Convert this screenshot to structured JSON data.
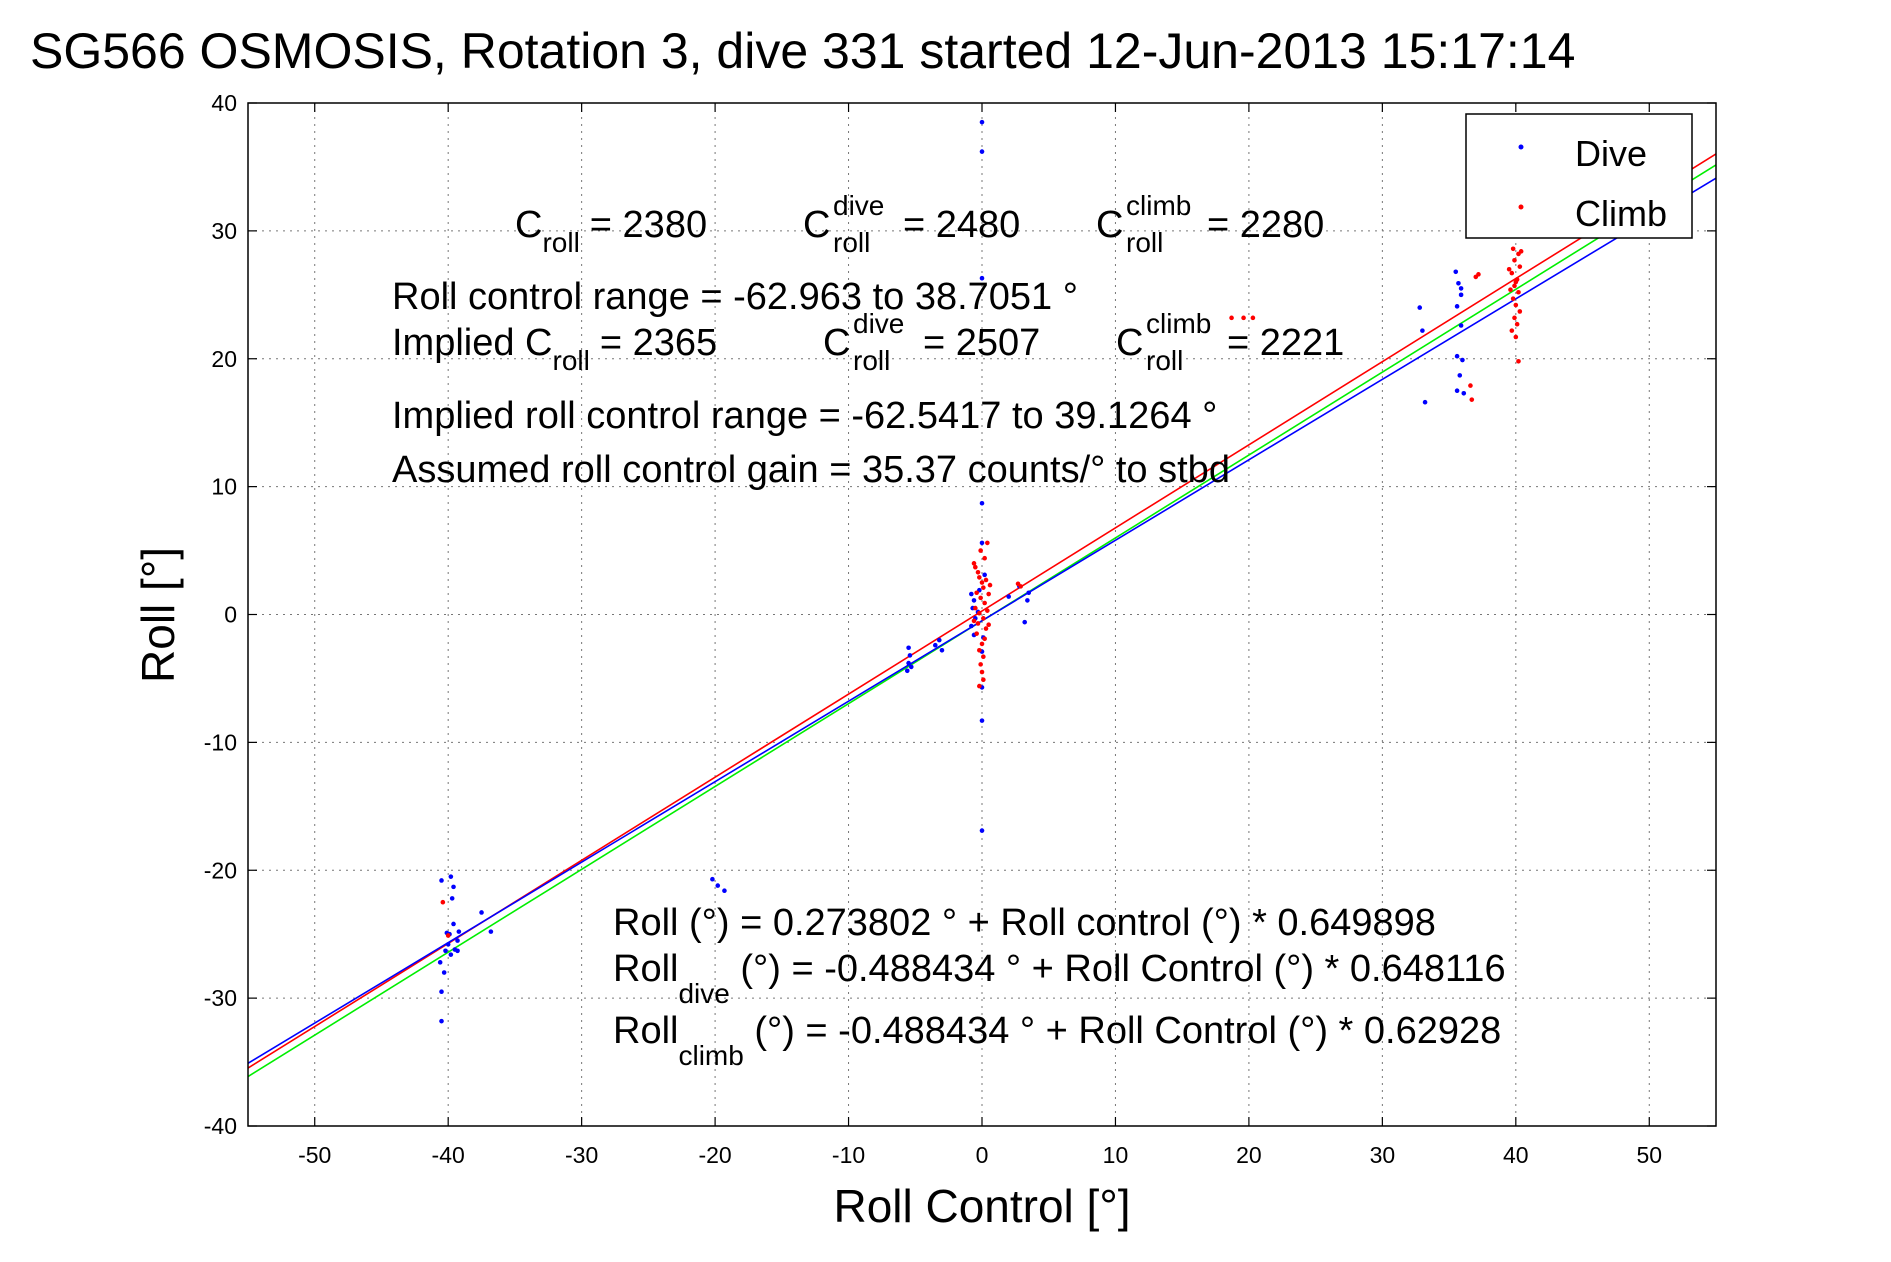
{
  "chart_data": {
    "type": "scatter",
    "title": "SG566 OSMOSIS, Rotation 3, dive 331 started 12-Jun-2013 15:17:14",
    "xlabel": "Roll Control [°]",
    "ylabel": "Roll [°]",
    "xlim": [
      -55,
      55
    ],
    "ylim": [
      -40,
      40
    ],
    "xticks": [
      -50,
      -40,
      -30,
      -20,
      -10,
      0,
      10,
      20,
      30,
      40,
      50
    ],
    "yticks": [
      -40,
      -30,
      -20,
      -10,
      0,
      10,
      20,
      30,
      40
    ],
    "grid": true,
    "legend_position": "top-right",
    "series": [
      {
        "name": "Dive",
        "color": "#0000ff",
        "marker": "dot",
        "points": [
          [
            -40.5,
            -20.8
          ],
          [
            -40.5,
            -31.8
          ],
          [
            -40.5,
            -29.5
          ],
          [
            -40.3,
            -28.0
          ],
          [
            -40.6,
            -27.2
          ],
          [
            -40.2,
            -26.3
          ],
          [
            -40.0,
            -25.8
          ],
          [
            -39.8,
            -26.6
          ],
          [
            -39.9,
            -25.0
          ],
          [
            -39.6,
            -24.2
          ],
          [
            -39.5,
            -26.2
          ],
          [
            -39.7,
            -22.2
          ],
          [
            -39.6,
            -21.3
          ],
          [
            -39.3,
            -25.5
          ],
          [
            -40.1,
            -24.9
          ],
          [
            -39.3,
            -26.3
          ],
          [
            -39.8,
            -20.5
          ],
          [
            -39.2,
            -24.8
          ],
          [
            -37.5,
            -23.3
          ],
          [
            -36.8,
            -24.8
          ],
          [
            -20.2,
            -20.7
          ],
          [
            -19.8,
            -21.2
          ],
          [
            -19.3,
            -21.6
          ],
          [
            -5.5,
            -2.6
          ],
          [
            -5.4,
            -3.2
          ],
          [
            -5.5,
            -3.8
          ],
          [
            -5.6,
            -4.4
          ],
          [
            -5.3,
            -4.1
          ],
          [
            -3.5,
            -2.4
          ],
          [
            -3.2,
            -2.0
          ],
          [
            -3.0,
            -2.8
          ],
          [
            -0.8,
            1.6
          ],
          [
            -0.6,
            1.1
          ],
          [
            -0.7,
            0.5
          ],
          [
            -0.5,
            -0.3
          ],
          [
            -0.8,
            -0.9
          ],
          [
            -0.6,
            -1.6
          ],
          [
            -0.3,
            0.2
          ],
          [
            -0.2,
            1.9
          ],
          [
            0.0,
            38.5
          ],
          [
            0.0,
            36.2
          ],
          [
            0.0,
            26.3
          ],
          [
            0.0,
            8.7
          ],
          [
            0.0,
            5.6
          ],
          [
            0.0,
            -2.9
          ],
          [
            0.0,
            -5.7
          ],
          [
            0.0,
            -8.3
          ],
          [
            0.0,
            -16.9
          ],
          [
            0.2,
            3.1
          ],
          [
            0.1,
            -1.8
          ],
          [
            2.8,
            2.2
          ],
          [
            3.2,
            -0.6
          ],
          [
            3.5,
            1.7
          ],
          [
            3.4,
            1.1
          ],
          [
            2.0,
            1.4
          ],
          [
            32.8,
            24.0
          ],
          [
            33.0,
            22.2
          ],
          [
            33.2,
            16.6
          ],
          [
            35.5,
            26.8
          ],
          [
            35.7,
            25.9
          ],
          [
            35.9,
            25.0
          ],
          [
            35.6,
            24.1
          ],
          [
            35.9,
            22.6
          ],
          [
            35.6,
            20.2
          ],
          [
            35.8,
            18.7
          ],
          [
            35.6,
            17.5
          ],
          [
            36.0,
            19.9
          ],
          [
            36.1,
            17.3
          ],
          [
            35.9,
            25.5
          ]
        ]
      },
      {
        "name": "Climb",
        "color": "#ff0000",
        "marker": "dot",
        "points": [
          [
            -40.4,
            -22.5
          ],
          [
            -40.0,
            -25.1
          ],
          [
            -0.6,
            4.0
          ],
          [
            -0.5,
            3.7
          ],
          [
            -0.3,
            3.3
          ],
          [
            -0.2,
            2.9
          ],
          [
            0.0,
            2.5
          ],
          [
            0.1,
            2.1
          ],
          [
            -0.4,
            1.7
          ],
          [
            -0.1,
            1.3
          ],
          [
            0.2,
            0.9
          ],
          [
            -0.5,
            0.5
          ],
          [
            -0.2,
            0.1
          ],
          [
            0.1,
            -0.3
          ],
          [
            -0.3,
            -0.7
          ],
          [
            0.3,
            -1.1
          ],
          [
            -0.4,
            -1.5
          ],
          [
            0.2,
            -1.9
          ],
          [
            0.0,
            -2.3
          ],
          [
            -0.2,
            -2.8
          ],
          [
            0.1,
            -3.3
          ],
          [
            -0.1,
            -3.9
          ],
          [
            0.0,
            -4.5
          ],
          [
            0.1,
            -5.1
          ],
          [
            -0.2,
            -5.6
          ],
          [
            0.2,
            4.4
          ],
          [
            0.4,
            5.6
          ],
          [
            -0.1,
            5.0
          ],
          [
            0.3,
            2.7
          ],
          [
            0.5,
            1.6
          ],
          [
            0.4,
            0.3
          ],
          [
            0.5,
            -0.8
          ],
          [
            -0.6,
            -0.5
          ],
          [
            0.6,
            2.3
          ],
          [
            2.7,
            2.4
          ],
          [
            2.9,
            2.2
          ],
          [
            18.7,
            23.2
          ],
          [
            19.6,
            23.2
          ],
          [
            20.3,
            23.2
          ],
          [
            36.6,
            17.9
          ],
          [
            36.7,
            16.8
          ],
          [
            37.2,
            26.6
          ],
          [
            37.0,
            26.4
          ],
          [
            39.8,
            28.6
          ],
          [
            40.2,
            28.2
          ],
          [
            39.9,
            27.7
          ],
          [
            40.3,
            27.2
          ],
          [
            39.7,
            26.7
          ],
          [
            40.1,
            26.2
          ],
          [
            39.9,
            25.7
          ],
          [
            40.2,
            25.2
          ],
          [
            39.8,
            24.7
          ],
          [
            40.0,
            24.2
          ],
          [
            40.3,
            23.7
          ],
          [
            39.9,
            23.2
          ],
          [
            40.1,
            22.7
          ],
          [
            39.7,
            22.2
          ],
          [
            40.0,
            21.7
          ],
          [
            40.2,
            19.8
          ],
          [
            40.0,
            26.0
          ],
          [
            39.6,
            25.4
          ],
          [
            40.4,
            28.4
          ],
          [
            39.5,
            27.0
          ]
        ]
      }
    ],
    "fit_lines": [
      {
        "color": "#ff0000",
        "intercept": 0.273802,
        "slope": 0.649898
      },
      {
        "color": "#00ee00",
        "intercept": -0.488434,
        "slope": 0.648116
      },
      {
        "color": "#0000ff",
        "intercept": -0.488434,
        "slope": 0.62928
      }
    ],
    "annotations": {
      "c_roll": {
        "base": "C",
        "sub": "roll",
        "value": "= 2380"
      },
      "c_roll_dive": {
        "base": "C",
        "sup": "dive",
        "sub": "roll",
        "value": "= 2480"
      },
      "c_roll_climb": {
        "base": "C",
        "sup": "climb",
        "sub": "roll",
        "value": "= 2280"
      },
      "range_line": "Roll control range = -62.963 to 38.7051 °",
      "implied_prefix": "Implied C",
      "implied_sub": "roll",
      "implied_value": "= 2365",
      "implied_dive": {
        "base": "C",
        "sup": "dive",
        "sub": "roll",
        "value": "= 2507"
      },
      "implied_climb": {
        "base": "C",
        "sup": "climb",
        "sub": "roll",
        "value": "= 2221"
      },
      "implied_range": "Implied roll control range = -62.5417 to 39.1264 °",
      "gain": "Assumed roll control gain = 35.37 counts/° to stbd",
      "fit_all": "Roll (°) = 0.273802 ° + Roll control (°) * 0.649898",
      "fit_dive_base": "Roll",
      "fit_dive_sub": "dive",
      "fit_dive_rest": " (°) = -0.488434 ° + Roll Control (°) * 0.648116",
      "fit_climb_base": "Roll",
      "fit_climb_sub": "climb",
      "fit_climb_rest": " (°) = -0.488434 ° + Roll Control (°) * 0.62928"
    }
  }
}
